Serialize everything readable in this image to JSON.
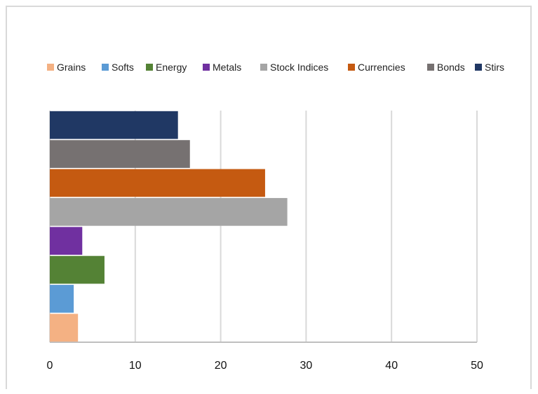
{
  "chart_data": {
    "type": "bar",
    "orientation": "horizontal",
    "title": "",
    "xlabel": "",
    "ylabel": "",
    "xlim": [
      0,
      50
    ],
    "x_ticks": [
      "0",
      "10",
      "20",
      "30",
      "40",
      "50"
    ],
    "grid": "vertical",
    "legend_position": "top",
    "series": [
      {
        "name": "Grains",
        "value": 3.3,
        "color": "#f4b183"
      },
      {
        "name": "Softs",
        "value": 2.8,
        "color": "#5b9bd5"
      },
      {
        "name": "Energy",
        "value": 6.4,
        "color": "#548235"
      },
      {
        "name": "Metals",
        "value": 3.8,
        "color": "#7030a0"
      },
      {
        "name": "Stock Indices",
        "value": 27.8,
        "color": "#a5a5a5"
      },
      {
        "name": "Currencies",
        "value": 25.2,
        "color": "#c55a11"
      },
      {
        "name": "Bonds",
        "value": 16.4,
        "color": "#767171"
      },
      {
        "name": "Stirs",
        "value": 15.0,
        "color": "#203864"
      }
    ]
  }
}
